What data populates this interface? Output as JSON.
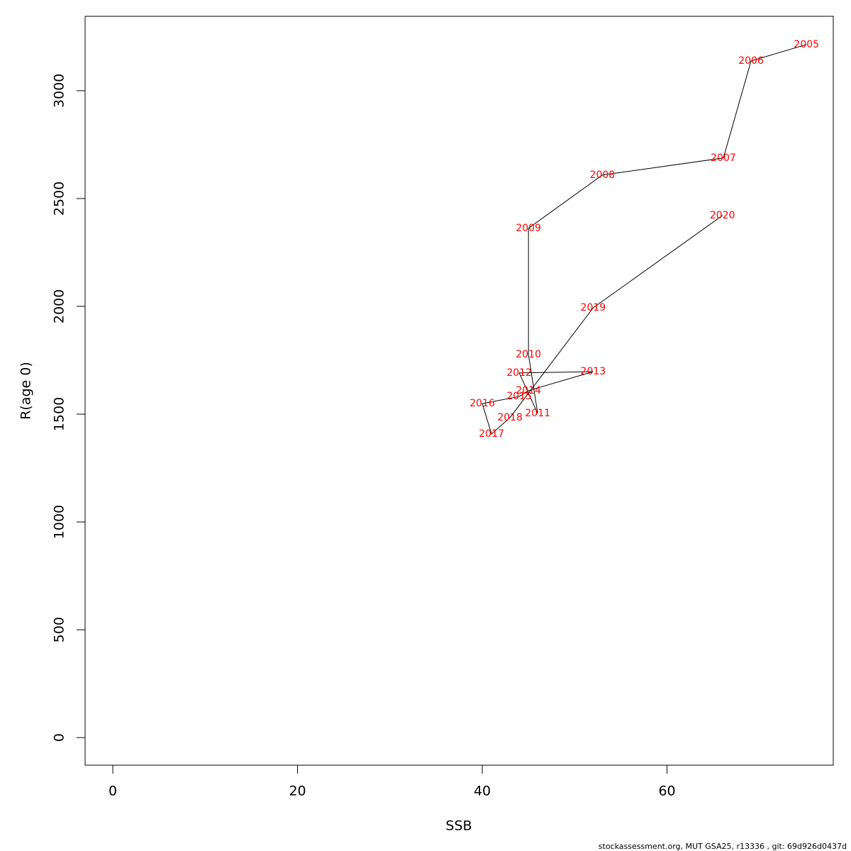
{
  "chart_data": {
    "type": "line",
    "x_label": "SSB",
    "y_label": "R(age 0)",
    "x": [
      75.1,
      69.1,
      66.1,
      53.0,
      45.0,
      45.0,
      46.0,
      44.0,
      52.0,
      45.0,
      44.0,
      40.0,
      41.0,
      43.0,
      52.0,
      66.0
    ],
    "series": [
      {
        "color": "#000000",
        "values": [
          3214,
          3138,
          2688,
          2609,
          2362,
          1776,
          1503,
          1691,
          1697,
          1609,
          1582,
          1549,
          1408,
          1484,
          1993,
          2421
        ]
      }
    ],
    "point_labels": [
      "2005",
      "2006",
      "2007",
      "2008",
      "2009",
      "2010",
      "2011",
      "2012",
      "2013",
      "2014",
      "2015",
      "2016",
      "2017",
      "2018",
      "2019",
      "2020"
    ],
    "label_color": "#ff0000",
    "xlim": [
      -3,
      78
    ],
    "ylim": [
      -128,
      3345
    ],
    "xticks": [
      0,
      20,
      40,
      60
    ],
    "yticks": [
      0,
      500,
      1000,
      1500,
      2000,
      2500,
      3000
    ],
    "footer": "stockassessment.org, MUT  GSA25, r13336 , git: 69d926d0437d"
  }
}
